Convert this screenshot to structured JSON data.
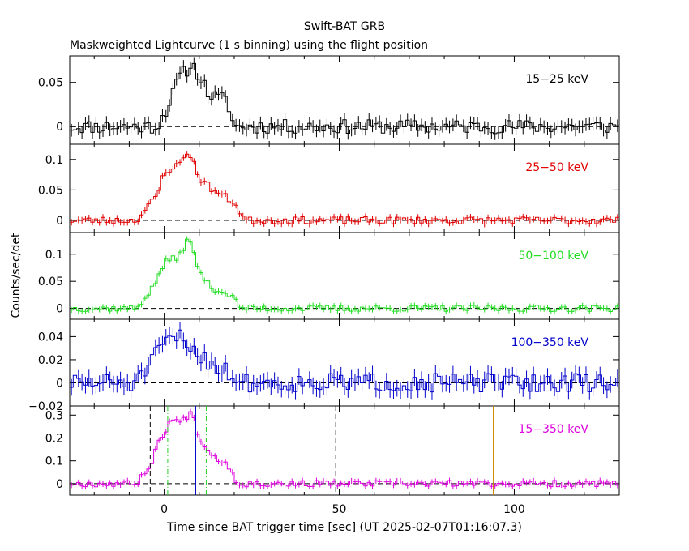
{
  "header": {
    "title": "Swift-BAT GRB",
    "subtitle": "Maskweighted Lightcurve (1 s binning) using the flight position"
  },
  "axes": {
    "xlabel": "Time since BAT trigger time [sec] (UT 2025-02-07T01:16:07.3)",
    "ylabel": "Counts/sec/det",
    "xlim": [
      -27,
      130
    ],
    "xticks": [
      0,
      50,
      100
    ],
    "xtick_labels": [
      "0",
      "50",
      "100"
    ]
  },
  "chart_data": [
    {
      "type": "line",
      "panel": 0,
      "label": "15−25 keV",
      "color": "#000000",
      "ylim": [
        -0.02,
        0.08
      ],
      "yticks": [
        0,
        0.05
      ],
      "ytick_labels": [
        "0",
        "0.05"
      ],
      "profile": [
        [
          -27,
          0.0
        ],
        [
          -2,
          0.0
        ],
        [
          2,
          0.03
        ],
        [
          4,
          0.055
        ],
        [
          8,
          0.07
        ],
        [
          10,
          0.058
        ],
        [
          13,
          0.035
        ],
        [
          18,
          0.03
        ],
        [
          20,
          0.0
        ]
      ],
      "noise": 0.008,
      "seed": 11
    },
    {
      "type": "line",
      "panel": 1,
      "label": "25−50 keV",
      "color": "#e00000",
      "ylim": [
        -0.02,
        0.125
      ],
      "yticks": [
        0,
        0.05,
        0.1
      ],
      "ytick_labels": [
        "0",
        "0.05",
        "0.1"
      ],
      "profile": [
        [
          -27,
          0.0
        ],
        [
          -8,
          0.0
        ],
        [
          -2,
          0.04
        ],
        [
          0,
          0.08
        ],
        [
          4,
          0.09
        ],
        [
          7,
          0.115
        ],
        [
          10,
          0.07
        ],
        [
          14,
          0.05
        ],
        [
          20,
          0.03
        ],
        [
          23,
          0.0
        ]
      ],
      "noise": 0.006,
      "seed": 23
    },
    {
      "type": "line",
      "panel": 2,
      "label": "50−100 keV",
      "color": "#22dd22",
      "ylim": [
        -0.02,
        0.14
      ],
      "yticks": [
        0,
        0.05,
        0.1
      ],
      "ytick_labels": [
        "0",
        "0.05",
        "0.1"
      ],
      "profile": [
        [
          -27,
          0.0
        ],
        [
          -8,
          0.0
        ],
        [
          -3,
          0.04
        ],
        [
          0,
          0.085
        ],
        [
          4,
          0.095
        ],
        [
          7,
          0.13
        ],
        [
          10,
          0.07
        ],
        [
          13,
          0.04
        ],
        [
          19,
          0.025
        ],
        [
          22,
          0.0
        ]
      ],
      "noise": 0.006,
      "seed": 37
    },
    {
      "type": "line",
      "panel": 3,
      "label": "100−350 keV",
      "color": "#0000cc",
      "ylim": [
        -0.02,
        0.055
      ],
      "yticks": [
        -0.02,
        0,
        0.02,
        0.04
      ],
      "ytick_labels": [
        "−0.02",
        "0",
        "0.02",
        "0.04"
      ],
      "profile": [
        [
          -27,
          0.0
        ],
        [
          -8,
          0.0
        ],
        [
          -3,
          0.02
        ],
        [
          0,
          0.035
        ],
        [
          4,
          0.04
        ],
        [
          8,
          0.03
        ],
        [
          12,
          0.02
        ],
        [
          18,
          0.01
        ],
        [
          22,
          0.0
        ]
      ],
      "noise": 0.008,
      "seed": 51
    },
    {
      "type": "line",
      "panel": 4,
      "label": "15−350 keV",
      "color": "#dd00dd",
      "ylim": [
        -0.05,
        0.34
      ],
      "yticks": [
        0,
        0.1,
        0.2,
        0.3
      ],
      "ytick_labels": [
        "0",
        "0.1",
        "0.2",
        "0.3"
      ],
      "profile": [
        [
          -27,
          0.0
        ],
        [
          -8,
          0.0
        ],
        [
          -4,
          0.08
        ],
        [
          -1,
          0.2
        ],
        [
          2,
          0.28
        ],
        [
          5,
          0.27
        ],
        [
          8,
          0.32
        ],
        [
          10,
          0.2
        ],
        [
          14,
          0.12
        ],
        [
          18,
          0.09
        ],
        [
          21,
          0.0
        ]
      ],
      "noise": 0.014,
      "seed": 67,
      "markers": [
        {
          "x": -4,
          "color": "#000000",
          "style": "dash"
        },
        {
          "x": 49,
          "color": "#000000",
          "style": "dash"
        },
        {
          "x": 1,
          "color": "#22cc22",
          "style": "dashdot"
        },
        {
          "x": 12,
          "color": "#22cc22",
          "style": "dashdot"
        },
        {
          "x": 9,
          "color": "#0000cc",
          "style": "solid"
        },
        {
          "x": 94,
          "color": "#cc8800",
          "style": "solid"
        }
      ]
    }
  ]
}
